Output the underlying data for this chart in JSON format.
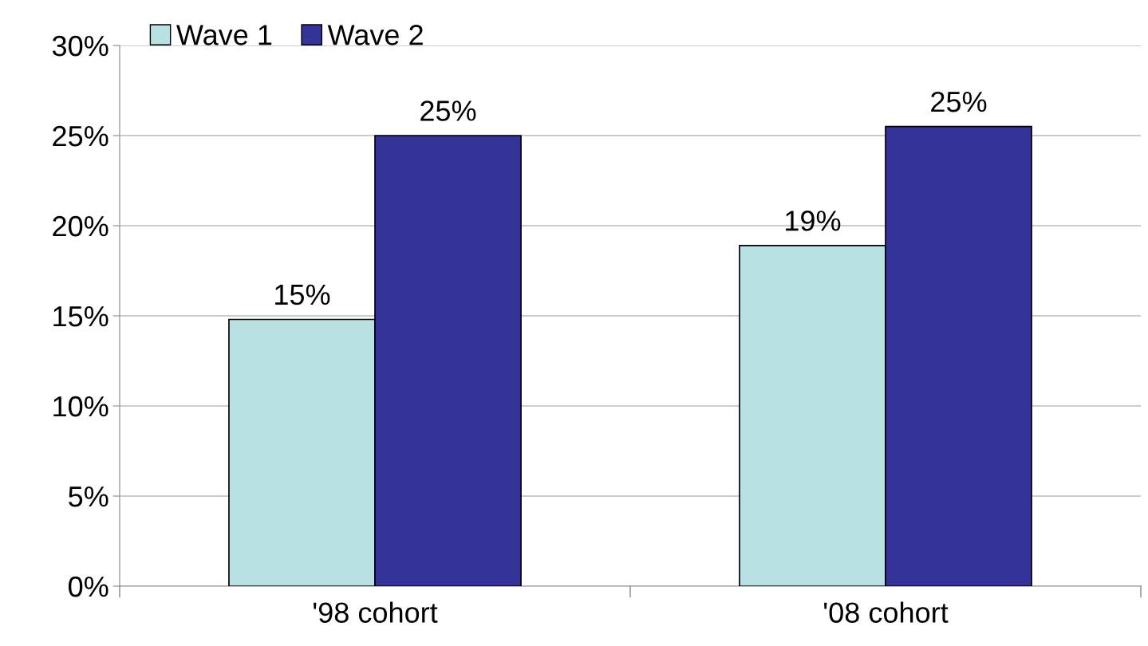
{
  "chart_data": {
    "type": "bar",
    "categories": [
      "'98 cohort",
      "'08 cohort"
    ],
    "series": [
      {
        "name": "Wave 1",
        "color": "#b9e0e3",
        "values": [
          14.8,
          18.9
        ],
        "value_labels": [
          "15%",
          "19%"
        ]
      },
      {
        "name": "Wave 2",
        "color": "#333399",
        "values": [
          25.0,
          25.5
        ],
        "value_labels": [
          "25%",
          "25%"
        ]
      }
    ],
    "ylim": [
      0,
      30
    ],
    "yticks": [
      {
        "value": 0,
        "label": "0%"
      },
      {
        "value": 5,
        "label": "5%"
      },
      {
        "value": 10,
        "label": "10%"
      },
      {
        "value": 15,
        "label": "15%"
      },
      {
        "value": 20,
        "label": "20%"
      },
      {
        "value": 25,
        "label": "25%"
      },
      {
        "value": 30,
        "label": "30%"
      }
    ],
    "grid": "y",
    "legend": "top left"
  }
}
